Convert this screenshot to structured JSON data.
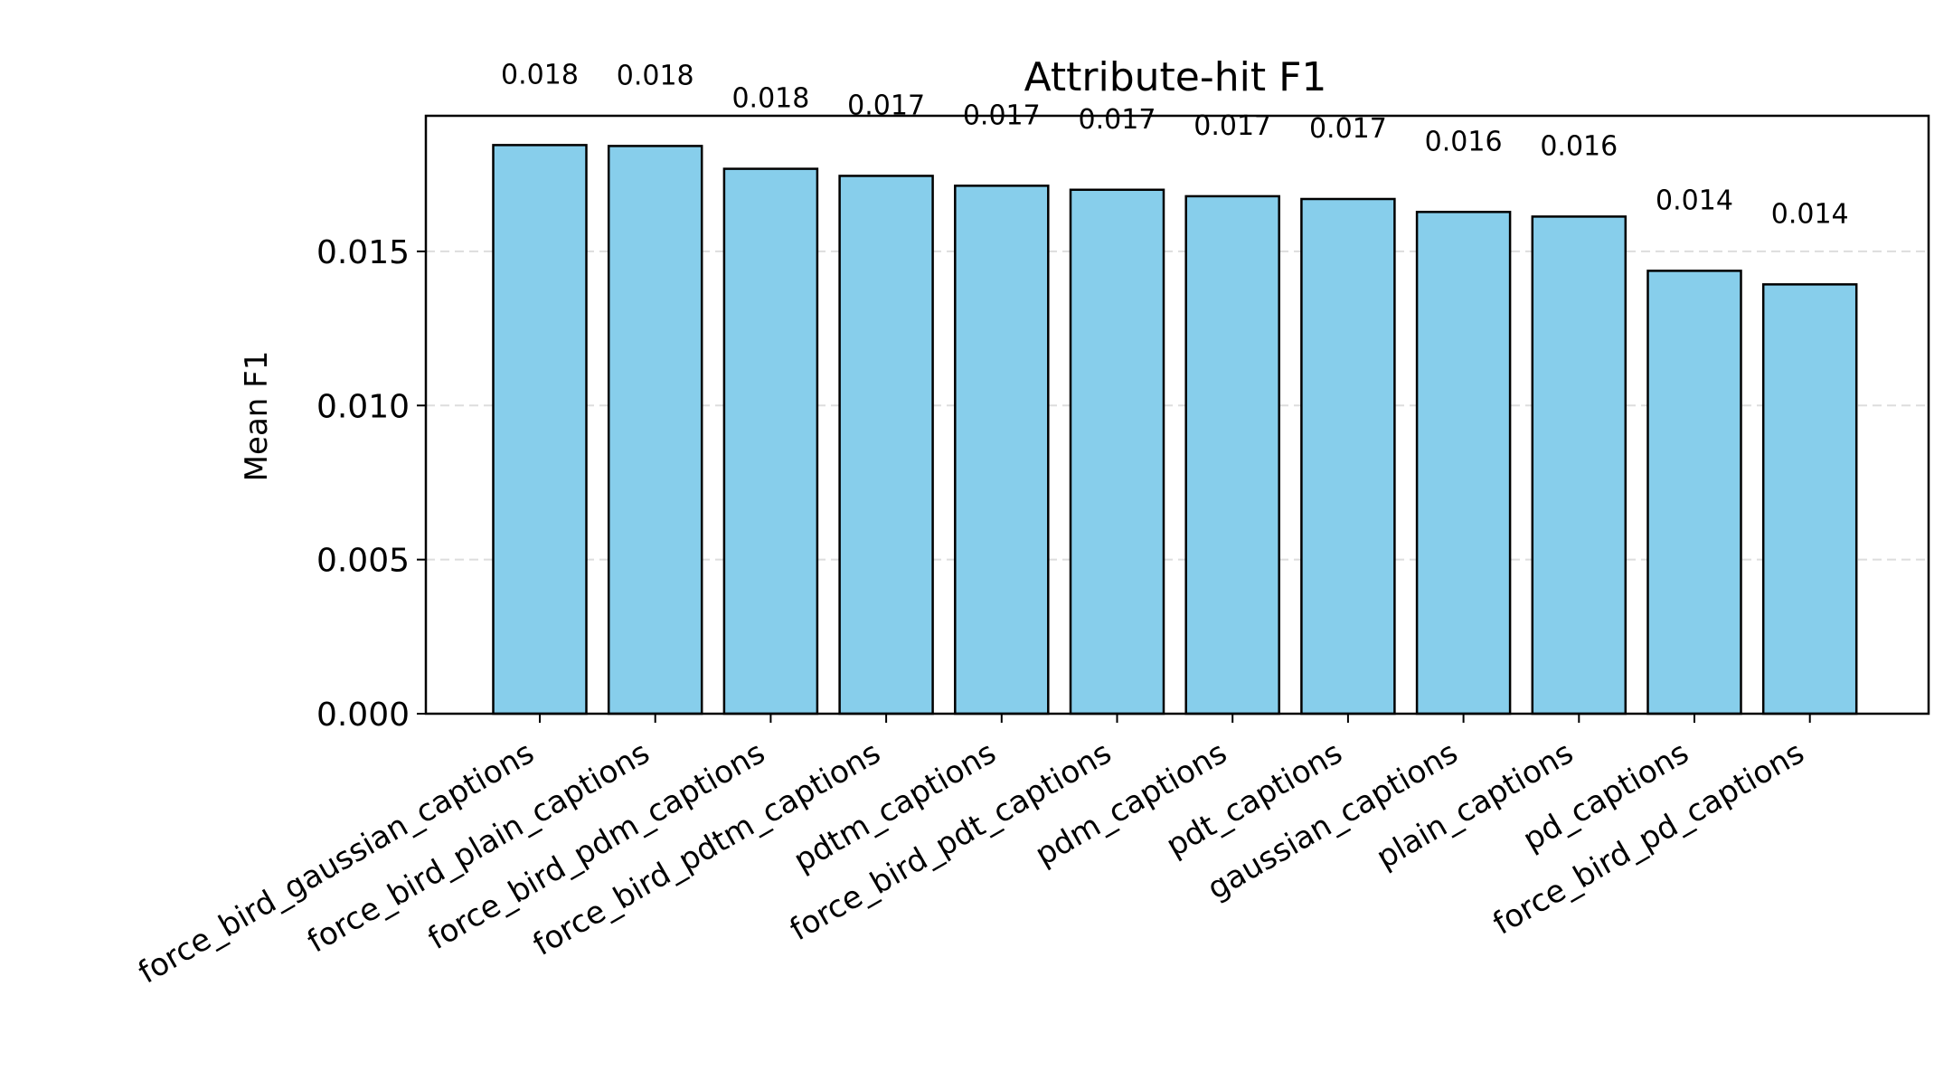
{
  "chart_data": {
    "type": "bar",
    "title": "Attribute-hit F1",
    "xlabel": "",
    "ylabel": "Mean F1",
    "categories": [
      "force_bird_gaussian_captions",
      "force_bird_plain_captions",
      "force_bird_pdm_captions",
      "force_bird_pdtm_captions",
      "pdtm_captions",
      "force_bird_pdt_captions",
      "pdm_captions",
      "pdt_captions",
      "gaussian_captions",
      "plain_captions",
      "pd_captions",
      "force_bird_pd_captions"
    ],
    "values": [
      0.01845,
      0.01842,
      0.01768,
      0.01745,
      0.01713,
      0.017,
      0.01679,
      0.0167,
      0.01628,
      0.01613,
      0.01437,
      0.01393
    ],
    "value_labels": [
      "0.018",
      "0.018",
      "0.018",
      "0.017",
      "0.017",
      "0.017",
      "0.017",
      "0.017",
      "0.016",
      "0.016",
      "0.014",
      "0.014"
    ],
    "ylim": [
      0,
      0.0194
    ],
    "yticks": [
      0,
      0.005,
      0.01,
      0.015
    ],
    "ytick_labels": [
      "0.000",
      "0.005",
      "0.010",
      "0.015"
    ],
    "grid": "y-dashed",
    "legend": "none",
    "colors": {
      "bar_fill": "#87ceeb",
      "bar_edge": "#000000",
      "grid": "#dddddd"
    }
  }
}
